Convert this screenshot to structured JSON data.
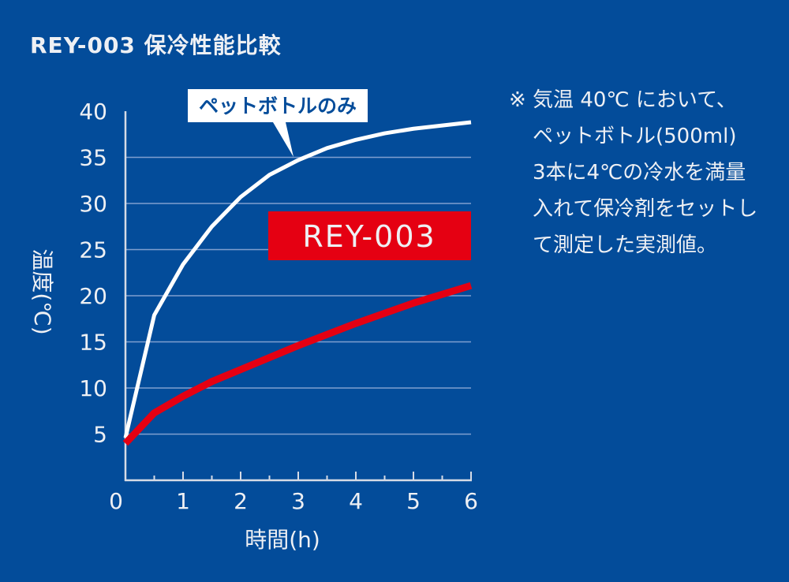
{
  "title": "REY-003 保冷性能比較",
  "note": [
    "※ 気温 40℃ において、",
    "ペットボトル(500ml)",
    "3本に4℃の冷水を満量",
    "入れて保冷剤をセットし",
    "て測定した実測値。"
  ],
  "colors": {
    "background": "#034c9a",
    "pet_bottle": "#ffffff",
    "rey003": "#e50012",
    "grid": "#7f9fcf"
  },
  "chart_data": {
    "type": "line",
    "title": "REY-003 保冷性能比較",
    "xlabel": "時間(h)",
    "ylabel": "温度(℃)",
    "xlim": [
      0,
      6
    ],
    "ylim": [
      0,
      40
    ],
    "xticks": [
      0,
      1,
      2,
      3,
      4,
      5,
      6
    ],
    "yticks": [
      5,
      10,
      15,
      20,
      25,
      30,
      35,
      40
    ],
    "grid": true,
    "series": [
      {
        "name": "ペットボトルのみ",
        "x": [
          0,
          0.5,
          1,
          1.5,
          2,
          2.5,
          3,
          3.5,
          4,
          4.5,
          5,
          6
        ],
        "y": [
          4.6,
          17.9,
          23.4,
          27.5,
          30.7,
          33.1,
          34.7,
          36.0,
          36.9,
          37.6,
          38.1,
          38.8
        ]
      },
      {
        "name": "REY-003",
        "x": [
          0,
          0.5,
          1,
          1.5,
          2,
          3,
          4,
          5,
          6
        ],
        "y": [
          4.0,
          7.3,
          9.1,
          10.7,
          12.0,
          14.6,
          17.0,
          19.2,
          21.1
        ]
      }
    ]
  }
}
